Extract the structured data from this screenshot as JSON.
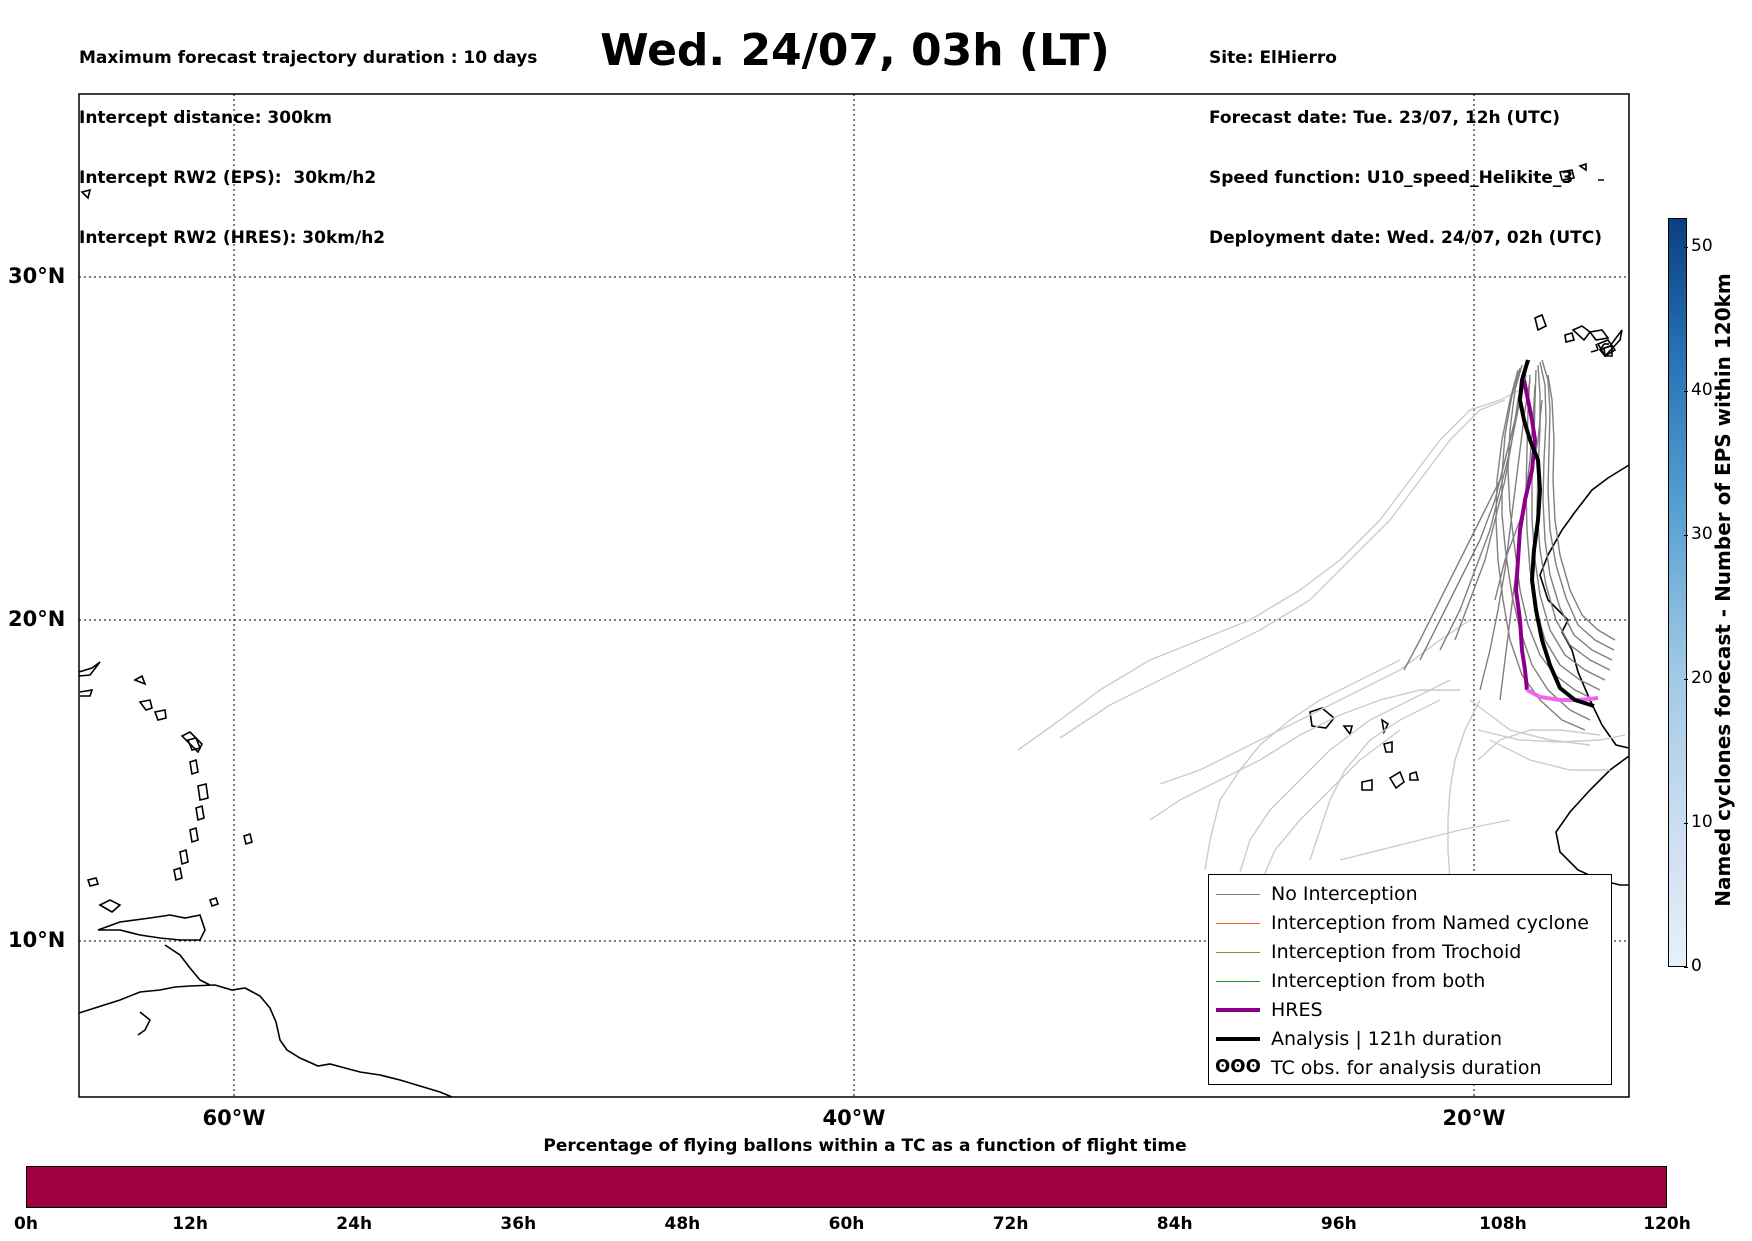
{
  "header_left": [
    "Maximum forecast trajectory duration : 10 days",
    "Intercept distance: 300km",
    "Intercept RW2 (EPS):  30km/h2",
    "Intercept RW2 (HRES): 30km/h2"
  ],
  "title": "Wed. 24/07, 03h (LT)",
  "header_right": [
    "Site: ElHierro",
    "Forecast date: Tue. 23/07, 12h (UTC)",
    "Speed function: U10_speed_Helikite_3",
    "Deployment date: Wed. 24/07, 02h (UTC)"
  ],
  "map": {
    "lat_labels": [
      "30°N",
      "20°N",
      "10°N"
    ],
    "lon_labels": [
      "60°W",
      "40°W",
      "20°W"
    ],
    "gridlines": "dotted",
    "colors": {
      "no_interception": "#7f7f7f",
      "named_cyclone": "#ff5a1f",
      "trochoid": "#8f8f1f",
      "both": "#1f8f1f",
      "hres": "#8b008b",
      "hres_tail": "#ee66ee",
      "analysis": "#000000",
      "faded_traj": "#cccccc"
    }
  },
  "legend": [
    {
      "label": "No Interception",
      "icon": "line-gray"
    },
    {
      "label": "Interception from Named cyclone",
      "icon": "line-orange"
    },
    {
      "label": "Interception from Trochoid",
      "icon": "line-olive"
    },
    {
      "label": "Interception from both",
      "icon": "line-green"
    },
    {
      "label": "HRES",
      "icon": "line-purple-thick"
    },
    {
      "label": "Analysis | 121h duration",
      "icon": "line-black-thick"
    },
    {
      "label": "TC obs. for analysis duration",
      "icon": "tc-symbol-icon",
      "symbol": "ʘʘʘ"
    }
  ],
  "colorbar": {
    "title": "Named cyclones forecast - Number of EPS within 120km",
    "ticks": [
      "0",
      "10",
      "20",
      "30",
      "40",
      "50"
    ],
    "range": [
      0,
      52
    ]
  },
  "percentage_bar": {
    "title": "Percentage of flying ballons within a TC as a function of flight time",
    "ticks": [
      "0h",
      "12h",
      "24h",
      "36h",
      "48h",
      "60h",
      "72h",
      "84h",
      "96h",
      "108h",
      "120h"
    ],
    "fill_color": "#9e0040",
    "value_percent": 0
  }
}
